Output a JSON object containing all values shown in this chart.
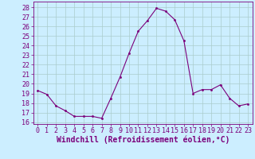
{
  "x": [
    0,
    1,
    2,
    3,
    4,
    5,
    6,
    7,
    8,
    9,
    10,
    11,
    12,
    13,
    14,
    15,
    16,
    17,
    18,
    19,
    20,
    21,
    22,
    23
  ],
  "y": [
    19.3,
    18.9,
    17.7,
    17.2,
    16.6,
    16.6,
    16.6,
    16.4,
    18.5,
    20.7,
    23.2,
    25.5,
    26.6,
    27.9,
    27.6,
    26.7,
    24.5,
    19.0,
    19.4,
    19.4,
    19.9,
    18.5,
    17.7,
    17.9
  ],
  "line_color": "#7b007b",
  "marker": ".",
  "marker_color": "#7b007b",
  "bg_color": "#cceeff",
  "grid_color": "#aacccc",
  "xlabel": "Windchill (Refroidissement éolien,°C)",
  "ylabel_ticks": [
    16,
    17,
    18,
    19,
    20,
    21,
    22,
    23,
    24,
    25,
    26,
    27,
    28
  ],
  "xlim": [
    -0.5,
    23.5
  ],
  "ylim": [
    15.8,
    28.6
  ],
  "tick_fontsize": 6,
  "xlabel_fontsize": 7,
  "label_color": "#7b007b",
  "axis_color": "#7b007b"
}
